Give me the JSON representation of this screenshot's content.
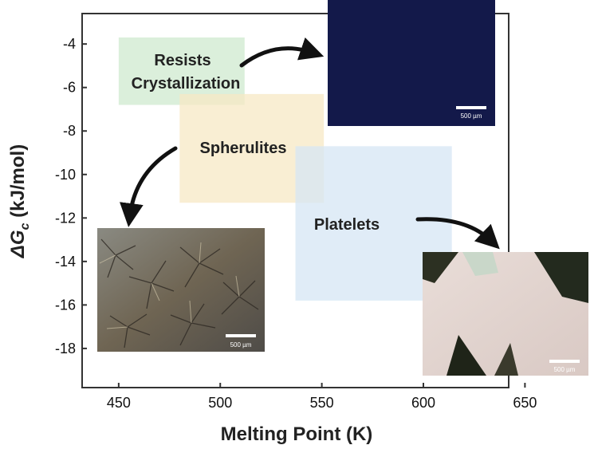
{
  "chart_data": {
    "type": "region-map",
    "xlabel": "Melting Point (K)",
    "ylabel": "ΔG",
    "ylabel_sub": "c",
    "ylabel_unit": " (kJ/mol)",
    "xlim": [
      432,
      642
    ],
    "ylim": [
      -19.8,
      -2.6
    ],
    "x_ticks": [
      450,
      500,
      550,
      600,
      650
    ],
    "y_ticks": [
      -4,
      -6,
      -8,
      -10,
      -12,
      -14,
      -16,
      -18
    ],
    "grid": false,
    "regions": [
      {
        "name": "Resists Crystallization",
        "lines": [
          "Resists",
          "Crystallization"
        ],
        "color": "#cfe9cf",
        "x": [
          450,
          512
        ],
        "y": [
          -6.8,
          -3.7
        ]
      },
      {
        "name": "Spherulites",
        "lines": [
          "Spherulites"
        ],
        "color": "#f7e8c4",
        "x": [
          480,
          551
        ],
        "y": [
          -11.3,
          -6.3
        ]
      },
      {
        "name": "Platelets",
        "lines": [
          "Platelets"
        ],
        "color": "#d6e6f4",
        "x": [
          537,
          614
        ],
        "y": [
          -15.8,
          -8.7
        ]
      }
    ],
    "micrographs": [
      {
        "name": "resists-crystallization-micrograph",
        "scale_bar": "500 µm"
      },
      {
        "name": "spherulites-micrograph",
        "scale_bar": "500 µm"
      },
      {
        "name": "platelets-micrograph",
        "scale_bar": "500 µm"
      }
    ]
  },
  "colors": {
    "axis": "#333333",
    "dark_field": "#13194a",
    "arrow": "#111111"
  }
}
